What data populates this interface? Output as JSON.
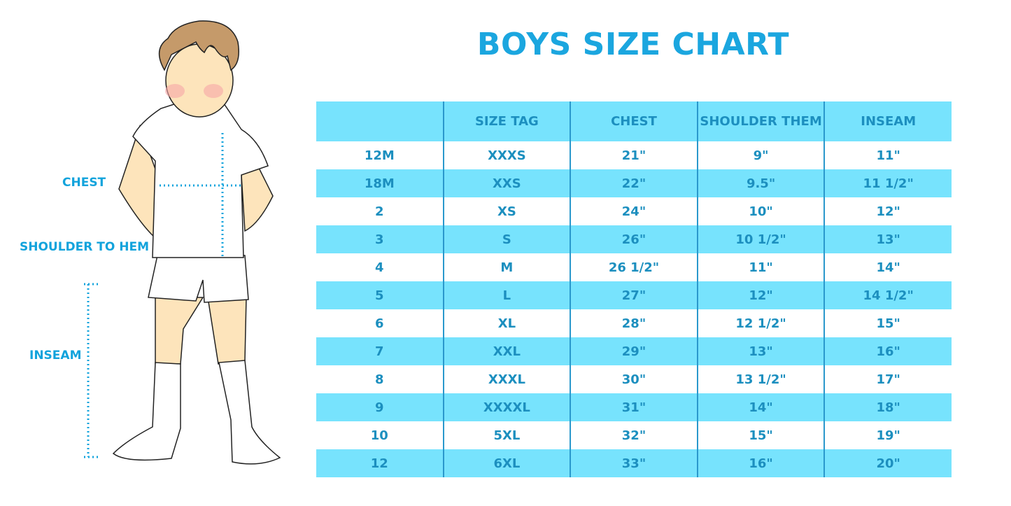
{
  "title": "BOYS SIZE CHART",
  "colors": {
    "title": "#1ba6df",
    "row_fill": "#77e3fd",
    "cell_text": "#1c8fbf",
    "measure_line": "#12a3dc"
  },
  "figure_labels": {
    "chest": "CHEST",
    "shoulder": "SHOULDER TO HEM",
    "inseam": "INSEAM"
  },
  "table": {
    "headers": [
      "",
      "SIZE TAG",
      "CHEST",
      "SHOULDER THEM",
      "INSEAM"
    ],
    "rows": [
      [
        "12M",
        "XXXS",
        "21\"",
        "9\"",
        "11\""
      ],
      [
        "18M",
        "XXS",
        "22\"",
        "9.5\"",
        "11 1/2\""
      ],
      [
        "2",
        "XS",
        "24\"",
        "10\"",
        "12\""
      ],
      [
        "3",
        "S",
        "26\"",
        "10 1/2\"",
        "13\""
      ],
      [
        "4",
        "M",
        "26 1/2\"",
        "11\"",
        "14\""
      ],
      [
        "5",
        "L",
        "27\"",
        "12\"",
        "14 1/2\""
      ],
      [
        "6",
        "XL",
        "28\"",
        "12 1/2\"",
        "15\""
      ],
      [
        "7",
        "XXL",
        "29\"",
        "13\"",
        "16\""
      ],
      [
        "8",
        "XXXL",
        "30\"",
        "13 1/2\"",
        "17\""
      ],
      [
        "9",
        "XXXXL",
        "31\"",
        "14\"",
        "18\""
      ],
      [
        "10",
        "5XL",
        "32\"",
        "15\"",
        "19\""
      ],
      [
        "12",
        "6XL",
        "33\"",
        "16\"",
        "20\""
      ]
    ]
  }
}
